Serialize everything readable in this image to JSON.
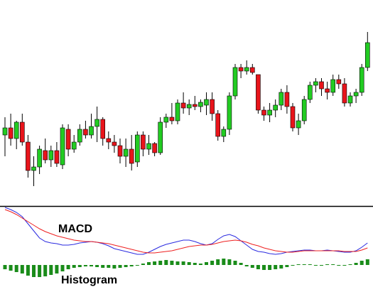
{
  "chart_data": [
    {
      "type": "candlestick",
      "up_color": "#22cc22",
      "down_color": "#e8141b",
      "ylim": [
        0,
        290
      ],
      "open": [
        100,
        110,
        95,
        118,
        90,
        50,
        55,
        78,
        65,
        78,
        58,
        108,
        80,
        90,
        108,
        100,
        112,
        122,
        95,
        90,
        85,
        70,
        80,
        62,
        100,
        80,
        88,
        75,
        118,
        125,
        120,
        145,
        138,
        143,
        140,
        142,
        150,
        130,
        98,
        108,
        155,
        195,
        190,
        195,
        185,
        135,
        128,
        135,
        142,
        160,
        140,
        110,
        120,
        150,
        170,
        175,
        165,
        160,
        178,
        172,
        145,
        155,
        160,
        195
      ],
      "high": [
        125,
        130,
        120,
        130,
        100,
        70,
        85,
        95,
        85,
        90,
        115,
        115,
        100,
        115,
        120,
        130,
        140,
        125,
        105,
        100,
        95,
        95,
        100,
        105,
        105,
        100,
        90,
        125,
        130,
        145,
        150,
        160,
        150,
        155,
        150,
        160,
        160,
        135,
        112,
        160,
        200,
        200,
        205,
        200,
        185,
        140,
        145,
        150,
        165,
        170,
        145,
        130,
        155,
        175,
        180,
        180,
        175,
        185,
        185,
        180,
        160,
        165,
        200,
        245
      ],
      "low": [
        70,
        85,
        80,
        85,
        40,
        28,
        45,
        60,
        55,
        55,
        52,
        70,
        75,
        85,
        95,
        95,
        90,
        85,
        80,
        75,
        60,
        55,
        50,
        55,
        70,
        72,
        70,
        72,
        110,
        115,
        115,
        130,
        128,
        135,
        132,
        128,
        120,
        92,
        90,
        100,
        150,
        180,
        185,
        185,
        130,
        120,
        118,
        125,
        135,
        130,
        105,
        100,
        115,
        145,
        160,
        155,
        150,
        155,
        165,
        140,
        140,
        145,
        155,
        190
      ],
      "close": [
        110,
        95,
        118,
        90,
        50,
        55,
        80,
        65,
        78,
        60,
        110,
        80,
        90,
        108,
        100,
        112,
        122,
        95,
        90,
        85,
        70,
        80,
        60,
        100,
        80,
        88,
        75,
        118,
        125,
        120,
        145,
        138,
        143,
        140,
        146,
        150,
        130,
        98,
        108,
        155,
        195,
        190,
        195,
        188,
        135,
        128,
        135,
        142,
        160,
        140,
        110,
        120,
        150,
        170,
        175,
        165,
        160,
        178,
        172,
        145,
        155,
        160,
        195,
        230
      ]
    },
    {
      "type": "macd",
      "ylim": [
        -31,
        83
      ],
      "series": [
        {
          "name": "MACD",
          "color": "#2a2ae0",
          "values": [
            81,
            78,
            74,
            68,
            58,
            48,
            38,
            33,
            31,
            30,
            28,
            28,
            29,
            31,
            32,
            33,
            32,
            30,
            27,
            23,
            21,
            19,
            17,
            15,
            15,
            18,
            22,
            26,
            29,
            31,
            33,
            35,
            35,
            33,
            30,
            28,
            30,
            36,
            41,
            43,
            40,
            34,
            28,
            22,
            19,
            18,
            16,
            15,
            16,
            18,
            19,
            20,
            21,
            21,
            20,
            20,
            21,
            20,
            19,
            18,
            18,
            20,
            25,
            31
          ]
        },
        {
          "color": "#ee2020",
          "values": [
            78,
            75,
            71,
            66,
            61,
            56,
            51,
            47,
            44,
            41,
            39,
            37,
            35,
            34,
            33,
            33,
            32,
            31,
            30,
            28,
            26,
            24,
            22,
            20,
            18,
            17,
            17,
            18,
            19,
            20,
            22,
            24,
            26,
            27,
            28,
            28,
            29,
            31,
            33,
            34,
            35,
            34,
            32,
            29,
            27,
            24,
            22,
            20,
            19,
            18,
            18,
            19,
            20,
            20,
            20,
            20,
            20,
            20,
            20,
            19,
            19,
            19,
            21,
            24
          ]
        },
        {
          "name": "Histogram",
          "color": "#1a8c1a",
          "values": [
            -6,
            -8,
            -10,
            -12,
            -15,
            -17,
            -17,
            -16,
            -14,
            -12,
            -9,
            -6,
            -4,
            -3,
            -2,
            -2,
            -3,
            -4,
            -4,
            -5,
            -4,
            -3,
            -2,
            -1,
            2,
            4,
            5,
            6,
            7,
            6,
            5,
            5,
            4,
            3,
            2,
            4,
            6,
            8,
            9,
            8,
            6,
            3,
            -2,
            -4,
            -6,
            -7,
            -7,
            -6,
            -5,
            -3,
            -1,
            1,
            1,
            1,
            -1,
            -1,
            1,
            1,
            -1,
            -1,
            1,
            3,
            6,
            8
          ]
        }
      ]
    }
  ]
}
